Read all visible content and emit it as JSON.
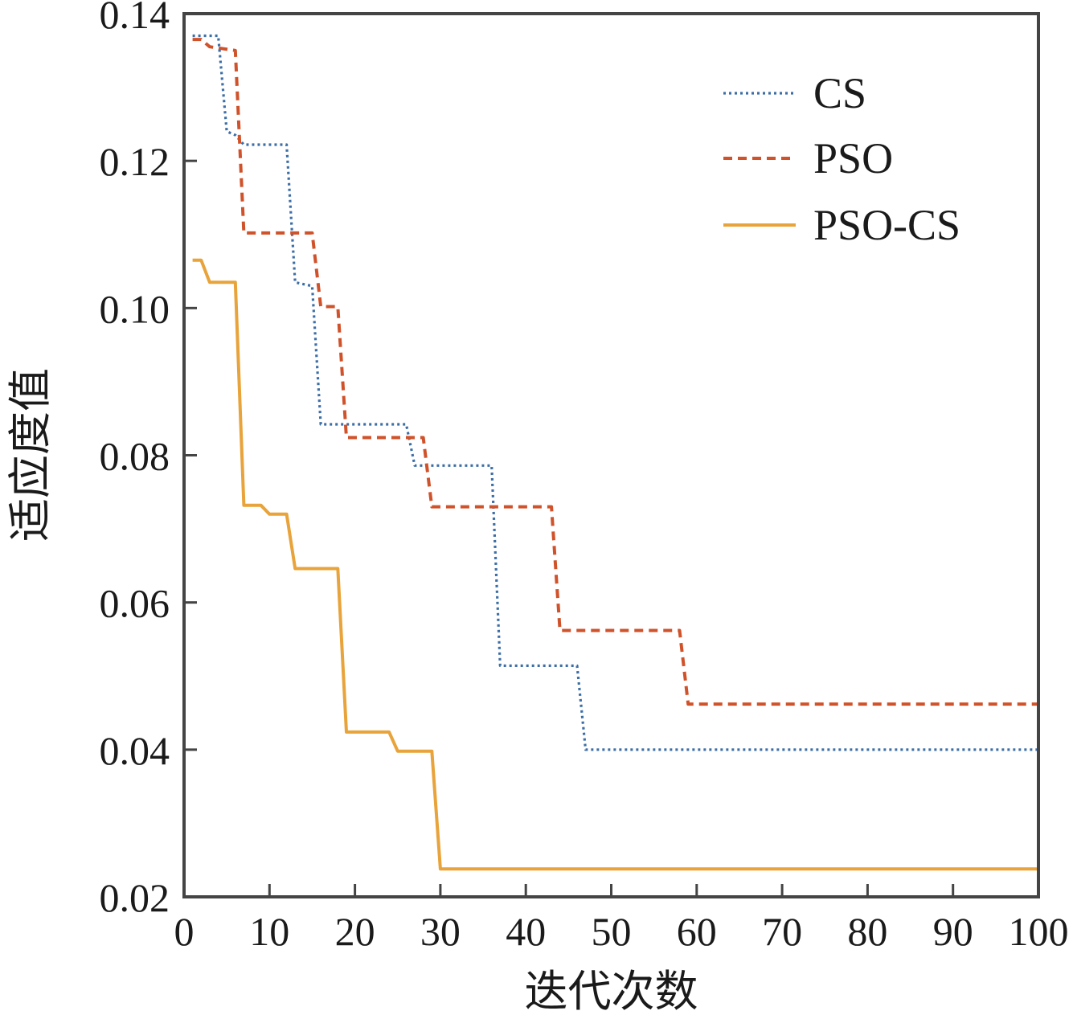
{
  "chart_data": {
    "type": "line",
    "title": "",
    "xlabel": "迭代次数",
    "ylabel": "适应度值",
    "xlim": [
      0,
      100
    ],
    "ylim": [
      0.02,
      0.14
    ],
    "xticks": [
      0,
      10,
      20,
      30,
      40,
      50,
      60,
      70,
      80,
      90,
      100
    ],
    "xtick_labels": [
      "0",
      "10",
      "20",
      "30",
      "40",
      "50",
      "60",
      "70",
      "80",
      "90",
      "100"
    ],
    "yticks": [
      0.02,
      0.04,
      0.06,
      0.08,
      0.1,
      0.12,
      0.14
    ],
    "ytick_labels": [
      "0.02",
      "0.04",
      "0.06",
      "0.08",
      "0.10",
      "0.12",
      "0.14"
    ],
    "grid": false,
    "legend_position": "top-right",
    "series": [
      {
        "name": "CS",
        "color": "#3c6ea6",
        "style": "dotted",
        "x": [
          1,
          4,
          5,
          6,
          7,
          12,
          13,
          15,
          16,
          26,
          27,
          36,
          37,
          46,
          47,
          100
        ],
        "y": [
          0.137,
          0.137,
          0.124,
          0.1235,
          0.1222,
          0.1222,
          0.1035,
          0.103,
          0.0842,
          0.0842,
          0.0786,
          0.0786,
          0.0514,
          0.0514,
          0.04,
          0.04
        ]
      },
      {
        "name": "PSO",
        "color": "#d0522a",
        "style": "dashed",
        "x": [
          1,
          2,
          3,
          6,
          7,
          15,
          16,
          18,
          19,
          28,
          29,
          43,
          44,
          58,
          59,
          100
        ],
        "y": [
          0.1365,
          0.1365,
          0.1355,
          0.135,
          0.1102,
          0.1102,
          0.1002,
          0.1002,
          0.0824,
          0.0824,
          0.073,
          0.073,
          0.0562,
          0.0562,
          0.0462,
          0.0462
        ]
      },
      {
        "name": "PSO-CS",
        "color": "#e8a33a",
        "style": "solid",
        "x": [
          1,
          2,
          3,
          6,
          7,
          9,
          10,
          12,
          13,
          18,
          19,
          24,
          25,
          29,
          30,
          100
        ],
        "y": [
          0.1065,
          0.1065,
          0.1035,
          0.1035,
          0.0732,
          0.0732,
          0.072,
          0.072,
          0.0646,
          0.0646,
          0.0424,
          0.0424,
          0.0398,
          0.0398,
          0.0238,
          0.0238
        ]
      }
    ]
  }
}
